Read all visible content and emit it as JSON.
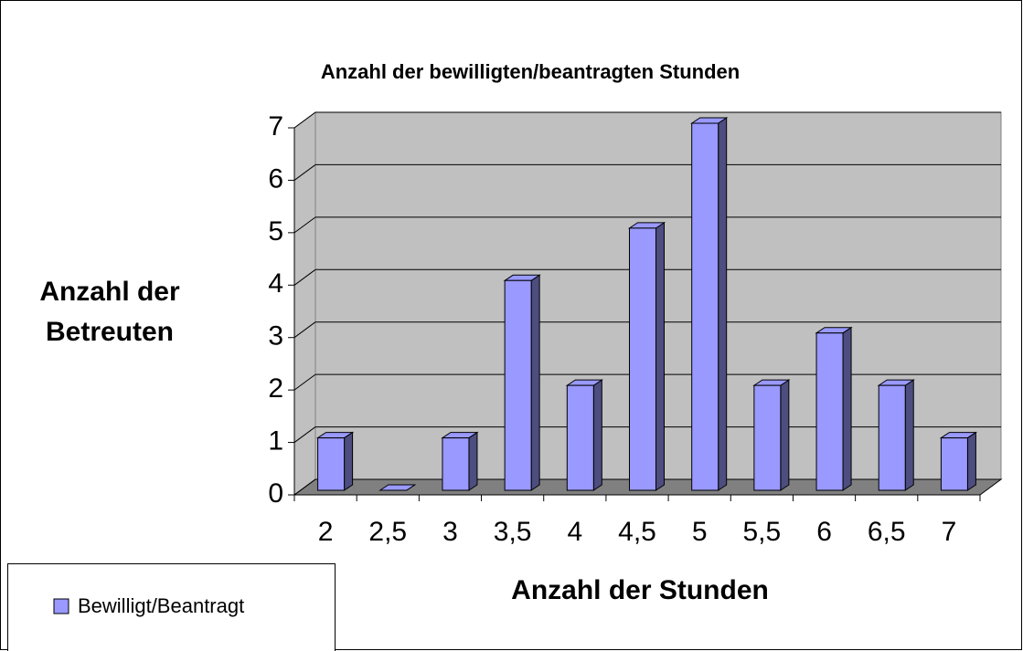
{
  "chart_data": {
    "type": "bar",
    "title": "Anzahl der bewilligten/beantragten Stunden",
    "x_label": "Anzahl der Stunden",
    "y_label": "Anzahl der Betreuten",
    "categories": [
      "2",
      "2,5",
      "3",
      "3,5",
      "4",
      "4,5",
      "5",
      "5,5",
      "6",
      "6,5",
      "7"
    ],
    "series": [
      {
        "name": "Bewilligt/Beantragt",
        "color": "#9999ff",
        "values": [
          1,
          0,
          1,
          4,
          2,
          5,
          7,
          2,
          3,
          2,
          1
        ]
      }
    ],
    "ylim": [
      0,
      7
    ],
    "yticks": [
      0,
      1,
      2,
      3,
      4,
      5,
      6,
      7
    ],
    "grid": true
  }
}
